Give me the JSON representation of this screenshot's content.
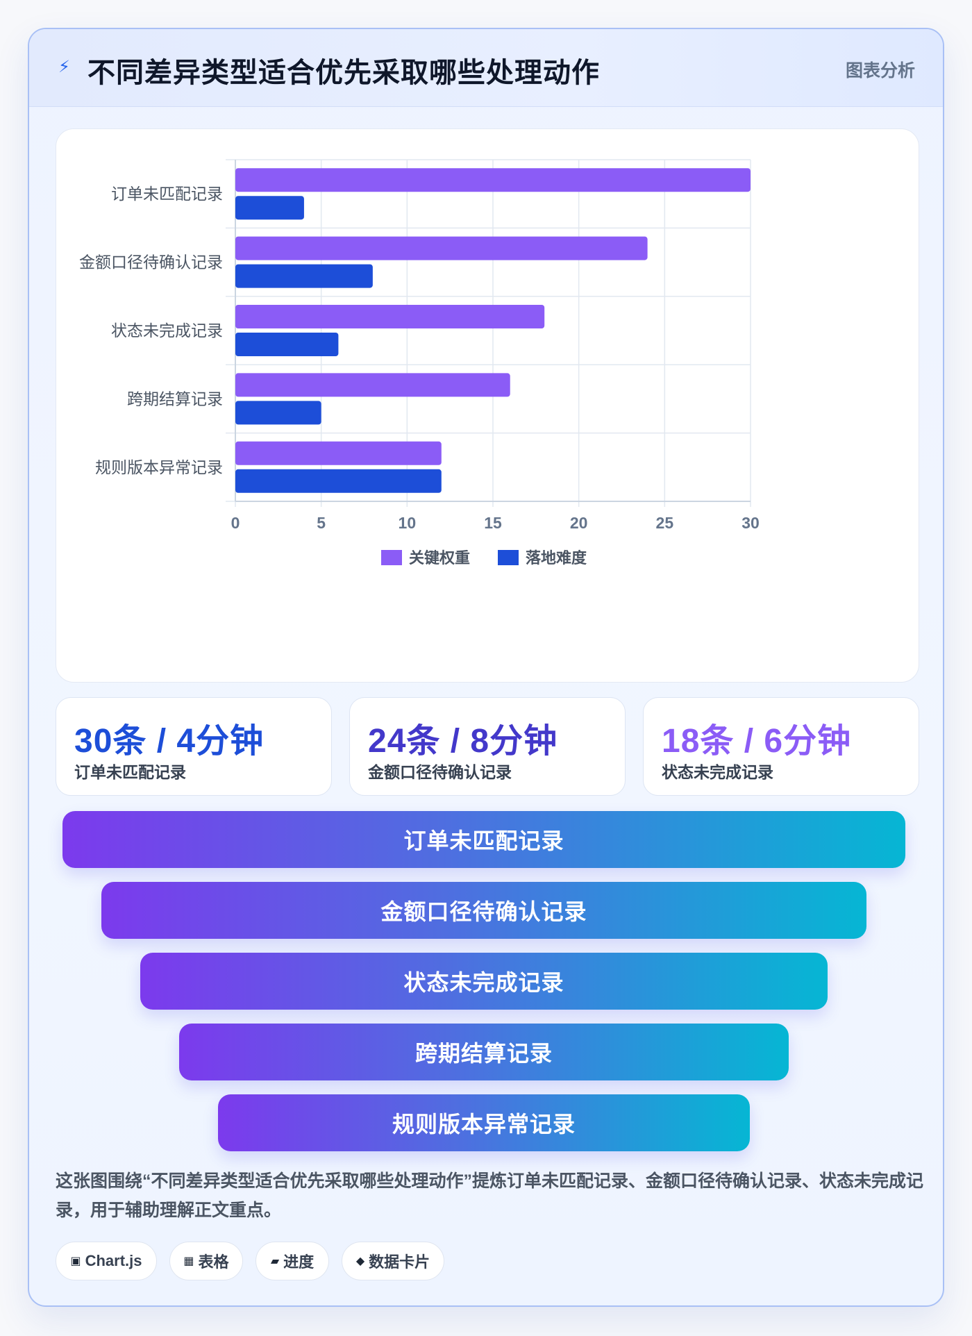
{
  "header": {
    "title": "不同差异类型适合优先采取哪些处理动作",
    "tag": "图表分析"
  },
  "chart_data": {
    "type": "bar",
    "orientation": "horizontal",
    "categories": [
      "订单未匹配记录",
      "金额口径待确认记录",
      "状态未完成记录",
      "跨期结算记录",
      "规则版本异常记录"
    ],
    "series": [
      {
        "name": "关键权重",
        "values": [
          30,
          24,
          18,
          16,
          12
        ],
        "color": "#8b5cf6"
      },
      {
        "name": "落地难度",
        "values": [
          4,
          8,
          6,
          5,
          12
        ],
        "color": "#1d4ed8"
      }
    ],
    "xlim": [
      0,
      30
    ],
    "xticks": [
      0,
      5,
      10,
      15,
      20,
      25,
      30
    ],
    "grid": true,
    "legend_position": "bottom"
  },
  "stats": [
    {
      "value": "30条 / 4分钟",
      "label": "订单未匹配记录",
      "color": "#1d4ed8"
    },
    {
      "value": "24条 / 8分钟",
      "label": "金额口径待确认记录",
      "color": "#4338ca"
    },
    {
      "value": "18条 / 6分钟",
      "label": "状态未完成记录",
      "color": "#8b5cf6"
    }
  ],
  "funnel": [
    "订单未匹配记录",
    "金额口径待确认记录",
    "状态未完成记录",
    "跨期结算记录",
    "规则版本异常记录"
  ],
  "description": "这张图围绕“不同差异类型适合优先采取哪些处理动作”提炼订单未匹配记录、金额口径待确认记录、状态未完成记录，用于辅助理解正文重点。",
  "chips": [
    {
      "icon": "▣",
      "icon_name": "chip-icon",
      "label": "Chart.js"
    },
    {
      "icon": "▦",
      "icon_name": "table-icon",
      "label": "表格"
    },
    {
      "icon": "▰",
      "icon_name": "progress-icon",
      "label": "进度"
    },
    {
      "icon": "◆",
      "icon_name": "card-icon",
      "label": "数据卡片"
    }
  ]
}
